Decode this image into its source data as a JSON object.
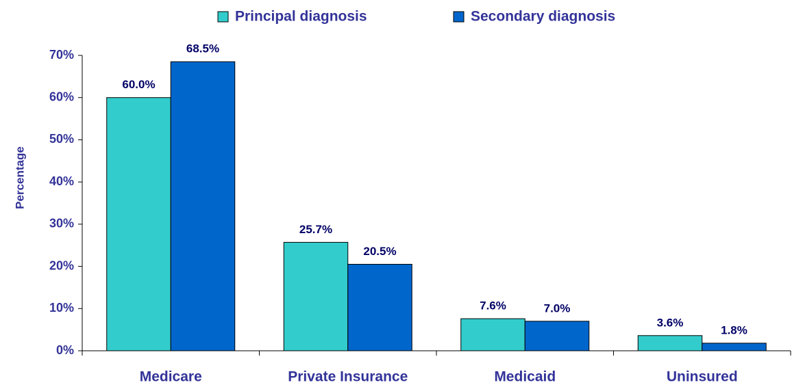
{
  "chart_data": {
    "type": "bar",
    "y_label": "Percentage",
    "categories": [
      "Medicare",
      "Private Insurance",
      "Medicaid",
      "Uninsured"
    ],
    "series": [
      {
        "name": "Principal diagnosis",
        "color": "#33CCCC",
        "values": [
          60.0,
          25.7,
          7.6,
          3.6
        ],
        "value_labels": [
          "60.0%",
          "25.7%",
          "7.6%",
          "3.6%"
        ]
      },
      {
        "name": "Secondary diagnosis",
        "color": "#0066CC",
        "values": [
          68.5,
          20.5,
          7.0,
          1.8
        ],
        "value_labels": [
          "68.5%",
          "20.5%",
          "7.0%",
          "1.8%"
        ]
      }
    ],
    "ylim": [
      0,
      70
    ],
    "yticks": [
      {
        "value": 0,
        "label": "0%"
      },
      {
        "value": 10,
        "label": "10%"
      },
      {
        "value": 20,
        "label": "20%"
      },
      {
        "value": 30,
        "label": "30%"
      },
      {
        "value": 40,
        "label": "40%"
      },
      {
        "value": 50,
        "label": "50%"
      },
      {
        "value": 60,
        "label": "60%"
      },
      {
        "value": 70,
        "label": "70%"
      }
    ],
    "legend": "top",
    "grid": false
  }
}
